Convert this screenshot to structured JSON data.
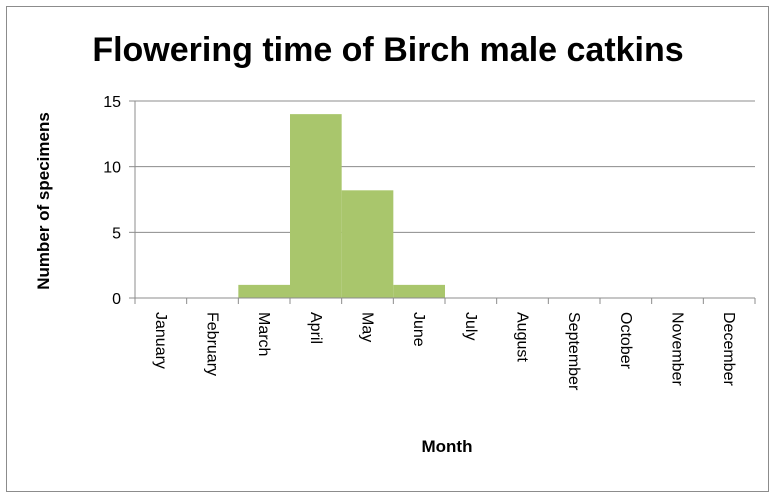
{
  "chart_data": {
    "type": "bar",
    "title": "Flowering time of Birch male catkins",
    "xlabel": "Month",
    "ylabel": "Number of specimens",
    "categories": [
      "January",
      "February",
      "March",
      "April",
      "May",
      "June",
      "July",
      "August",
      "September",
      "October",
      "November",
      "December"
    ],
    "values": [
      0,
      0,
      1,
      14,
      8.2,
      1,
      0,
      0,
      0,
      0,
      0,
      0
    ],
    "ylim": [
      0,
      15
    ],
    "yticks": [
      0,
      5,
      10,
      15
    ],
    "grid": true,
    "legend": "none",
    "bar_color": "#a9c66c"
  }
}
